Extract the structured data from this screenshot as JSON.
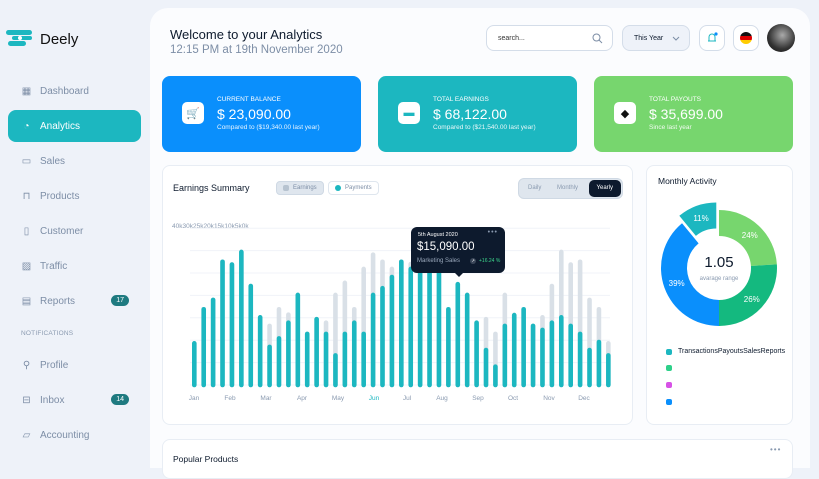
{
  "brand": {
    "name": "Deely",
    "color": "#1cb7c0"
  },
  "sidebar": {
    "items": [
      {
        "label": "Dashboard",
        "icon": "grid-icon"
      },
      {
        "label": "Analytics",
        "icon": "pie-chart-icon",
        "active": true
      },
      {
        "label": "Sales",
        "icon": "wallet-icon"
      },
      {
        "label": "Products",
        "icon": "shopping-bag-icon"
      },
      {
        "label": "Customer",
        "icon": "briefcase-icon"
      },
      {
        "label": "Traffic",
        "icon": "image-chart-icon"
      },
      {
        "label": "Reports",
        "icon": "document-icon",
        "badge": "17"
      }
    ],
    "section_label": "NOTIFICATIONS",
    "items2": [
      {
        "label": "Profile",
        "icon": "user-icon"
      },
      {
        "label": "Inbox",
        "icon": "inbox-icon",
        "badge": "14"
      },
      {
        "label": "Accounting",
        "icon": "folder-icon"
      }
    ]
  },
  "header": {
    "title": "Welcome to your Analytics",
    "subtitle": "12:15 PM at 19th November 2020",
    "search_placeholder": "search...",
    "period": "This Year"
  },
  "cards": [
    {
      "label": "CURRENT BALANCE",
      "value": "$ 23,090.00",
      "sub": "Compared to ($19,340.00 last year)",
      "color": "#0a8ffc",
      "icon": "cart-icon"
    },
    {
      "label": "TOTAL EARNINGS",
      "value": "$ 68,122.00",
      "sub": "Compared to ($21,540.00 last year)",
      "color": "#1cb7c0",
      "icon": "credit-card-icon"
    },
    {
      "label": "TOTAL PAYOUTS",
      "value": "$ 35,699.00",
      "sub": "Since last year",
      "color": "#77d66e",
      "icon": "ticket-icon"
    }
  ],
  "earnings": {
    "title": "Earnings Summary",
    "legend": [
      "Earnings",
      "Payments"
    ],
    "tabs": [
      "Daily",
      "Monthly",
      "Yearly"
    ],
    "active_tab": "Yearly",
    "tooltip": {
      "date": "5th August 2020",
      "value": "$15,090.00",
      "label": "Marketing Sales",
      "change": "+16.24 %"
    }
  },
  "chart_data": {
    "type": "bar",
    "ytick_labels": [
      "40k",
      "30k",
      "25k",
      "20k",
      "15k",
      "10k",
      "5k",
      "0k"
    ],
    "ylim": [
      0,
      35000
    ],
    "grid": true,
    "month_labels": [
      "Jan",
      "Feb",
      "Mar",
      "Apr",
      "May",
      "Jun",
      "Jul",
      "Aug",
      "Sep",
      "Oct",
      "Nov",
      "Dec"
    ],
    "highlight_month": "Jun",
    "series": [
      {
        "name": "Earnings",
        "color": "#d9e0e7",
        "values": [
          9300,
          16900,
          19000,
          27500,
          26900,
          29700,
          22100,
          15100,
          13200,
          16900,
          15700,
          20100,
          11400,
          14700,
          13900,
          20100,
          22800,
          16900,
          25900,
          29100,
          27500,
          25900,
          27500,
          27000,
          27000,
          27000,
          27000,
          16900,
          22500,
          20100,
          13900,
          14700,
          11400,
          20100,
          15600,
          16900,
          13200,
          15100,
          22100,
          29700,
          26900,
          27500,
          19000,
          16900,
          9300
        ]
      },
      {
        "name": "Payments",
        "color": "#1cb7c0",
        "values": [
          9300,
          16900,
          19000,
          27500,
          26900,
          29700,
          22100,
          15100,
          8500,
          10400,
          13900,
          20100,
          11400,
          14700,
          11400,
          6600,
          11400,
          13900,
          11400,
          20100,
          21600,
          24100,
          27500,
          25900,
          25700,
          25700,
          25700,
          16900,
          22500,
          20100,
          13900,
          7800,
          4100,
          13200,
          15600,
          16900,
          13200,
          12300,
          13900,
          15100,
          13200,
          11400,
          7800,
          9600,
          6600
        ]
      }
    ]
  },
  "activity": {
    "title": "Monthly Activity",
    "center_value": "1.05",
    "center_label": "avarage range",
    "slices": [
      {
        "pct": 24,
        "label": "24%",
        "color": "#77d66e"
      },
      {
        "pct": 26,
        "label": "26%",
        "color": "#14b97f"
      },
      {
        "pct": 39,
        "label": "39%",
        "color": "#0a8ffc"
      },
      {
        "pct": 11,
        "label": "11%",
        "color": "#1cb7c0",
        "exploded": true
      }
    ],
    "legend_text": "TransactionsPayoutsSalesReports",
    "legend_colors": [
      "#1cb7c0",
      "#2ed08a",
      "#d752e6",
      "#0a8ffc"
    ]
  },
  "popular": {
    "title": "Popular Products"
  }
}
